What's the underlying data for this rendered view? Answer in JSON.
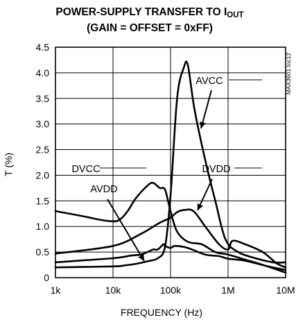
{
  "chart_data": {
    "type": "line",
    "title_line1": "POWER-SUPPLY TRANSFER TO I",
    "title_line1_sub": "OUT",
    "title_line2": "(GAIN = OFFSET = 0xFF)",
    "xlabel": "FREQUENCY (Hz)",
    "ylabel": "T (%)",
    "x_scale": "log",
    "xlim": [
      1000,
      10000000
    ],
    "ylim": [
      0,
      4.5
    ],
    "grid": true,
    "x_ticks": [
      1000,
      10000,
      100000,
      1000000,
      10000000
    ],
    "x_tick_labels": [
      "1k",
      "10k",
      "100k",
      "1M",
      "10M"
    ],
    "y_ticks": [
      0,
      0.5,
      1.0,
      1.5,
      2.0,
      2.5,
      3.0,
      3.5,
      4.0,
      4.5
    ],
    "y_tick_labels": [
      "0",
      "0.5",
      "1.0",
      "1.5",
      "2.0",
      "2.5",
      "3.0",
      "3.5",
      "4.0",
      "4.5"
    ],
    "side_label": "MAX3601 toc12",
    "series": [
      {
        "name": "AVCC",
        "x": [
          1000,
          10000,
          16000,
          25000,
          40000,
          60000,
          80000,
          100000,
          130000,
          170000,
          200000,
          260000,
          400000,
          600000,
          900000,
          1500000,
          3000000,
          6000000,
          10000000
        ],
        "y": [
          0.2,
          0.22,
          0.24,
          0.27,
          0.32,
          0.38,
          0.6,
          1.6,
          3.5,
          4.1,
          4.15,
          3.3,
          2.3,
          1.5,
          0.75,
          0.5,
          0.38,
          0.3,
          0.3
        ]
      },
      {
        "name": "DVCC",
        "x": [
          1000,
          3000,
          6000,
          10000,
          13000,
          18000,
          25000,
          40000,
          50000,
          65000,
          80000,
          100000,
          130000,
          200000,
          350000,
          600000,
          1000000,
          2000000,
          4000000,
          10000000
        ],
        "y": [
          1.3,
          1.2,
          1.13,
          1.1,
          1.13,
          1.3,
          1.55,
          1.8,
          1.85,
          1.75,
          1.72,
          1.3,
          0.9,
          0.7,
          0.65,
          0.5,
          0.45,
          0.35,
          0.25,
          0.1
        ]
      },
      {
        "name": "DVDD",
        "x": [
          1000,
          10000,
          30000,
          60000,
          80000,
          100000,
          130000,
          170000,
          250000,
          400000,
          700000,
          1000000,
          1200000,
          2000000,
          4000000,
          7000000,
          10000000
        ],
        "y": [
          0.47,
          0.62,
          0.85,
          1.05,
          1.12,
          1.17,
          1.28,
          1.32,
          1.3,
          1.0,
          0.65,
          0.55,
          0.72,
          0.65,
          0.5,
          0.28,
          0.2
        ]
      },
      {
        "name": "AVDD",
        "x": [
          1000,
          10000,
          20000,
          30000,
          40000,
          50000,
          60000,
          75000,
          80000,
          100000,
          120000,
          200000,
          400000,
          700000,
          1000000,
          2000000,
          5000000,
          10000000
        ],
        "y": [
          0.3,
          0.38,
          0.43,
          0.45,
          0.5,
          0.55,
          0.55,
          0.65,
          0.62,
          0.58,
          0.62,
          0.58,
          0.45,
          0.42,
          0.37,
          0.33,
          0.22,
          0.15
        ]
      }
    ]
  }
}
